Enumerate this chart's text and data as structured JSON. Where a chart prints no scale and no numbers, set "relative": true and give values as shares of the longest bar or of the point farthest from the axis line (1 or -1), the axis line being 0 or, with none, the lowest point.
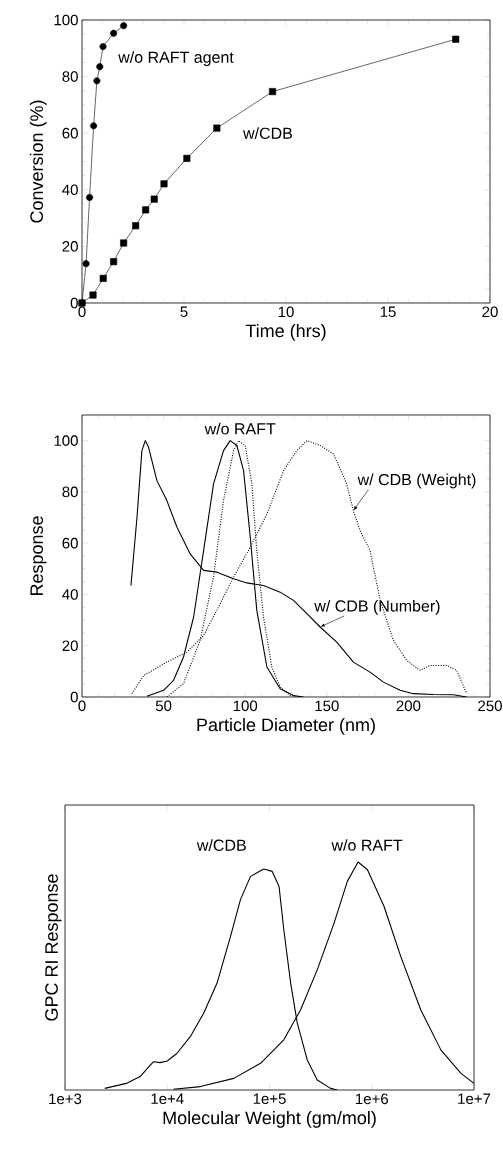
{
  "chart_data": [
    {
      "type": "line",
      "xlabel": "Time (hrs)",
      "ylabel": "Conversion (%)",
      "xlim": [
        0,
        20
      ],
      "ylim": [
        0,
        100
      ],
      "xticks": [
        0,
        5,
        10,
        15,
        20
      ],
      "yticks": [
        0,
        20,
        40,
        60,
        80,
        100
      ],
      "series": [
        {
          "name": "w/o RAFT agent",
          "color": "#000000",
          "marker": "circle",
          "x": [
            0,
            0.2,
            0.37,
            0.57,
            0.73,
            0.87,
            1.03,
            1.55,
            2.04
          ],
          "values": [
            0,
            13.9,
            37.3,
            62.6,
            78.5,
            83.5,
            90.6,
            95.3,
            98
          ]
        },
        {
          "name": "w/CDB",
          "color": "#000000",
          "marker": "square",
          "x": [
            0,
            0.54,
            1.04,
            1.55,
            2.04,
            2.63,
            3.12,
            3.54,
            4.02,
            5.14,
            6.61,
            9.34,
            18.32
          ],
          "values": [
            0,
            2.8,
            8.7,
            14.6,
            21.2,
            27.3,
            32.9,
            36.7,
            42.1,
            51.1,
            61.8,
            74.7,
            93.2
          ]
        }
      ]
    },
    {
      "type": "line",
      "xlabel": "Particle Diameter (nm)",
      "ylabel": "Response",
      "xlim": [
        0,
        250
      ],
      "ylim": [
        0,
        110
      ],
      "xticks": [
        0,
        50,
        100,
        150,
        200,
        250
      ],
      "yticks": [
        0,
        20,
        40,
        60,
        80,
        100
      ],
      "series": [
        {
          "name": "w/o RAFT",
          "color": "#000000",
          "line_style": "solid",
          "x": [
            39.8,
            50,
            56.1,
            62.2,
            68.4,
            74.5,
            80.6,
            86.7,
            90.8,
            94.9,
            99,
            103.1,
            107.1,
            113.3,
            121.4,
            129.6,
            135.7
          ],
          "values": [
            0.3,
            2.6,
            6.5,
            15.6,
            31.2,
            57.1,
            83.1,
            96.1,
            100,
            98.1,
            88.3,
            62.3,
            33.8,
            11.7,
            3.2,
            0.6,
            0
          ]
        },
        {
          "color": "#000000",
          "line_style": "dotted",
          "x": [
            52,
            62.2,
            72.4,
            80.6,
            86.7,
            92.9,
            95.9,
            100,
            104.1,
            107.1,
            111.2,
            116.3,
            121.4,
            127.6,
            133.7
          ],
          "values": [
            0,
            5.2,
            22.1,
            46.8,
            76.6,
            96.1,
            100,
            98.1,
            83.1,
            57.1,
            31.2,
            11.7,
            3.9,
            0.6,
            0
          ]
        },
        {
          "name": "w/ CDB (Weight)",
          "color": "#000000",
          "line_style": "dotted",
          "x": [
            30.6,
            37.8,
            52,
            64.3,
            74.5,
            84.7,
            92.9,
            103.1,
            113.3,
            123.5,
            131.6,
            137.8,
            146,
            154.1,
            162.2,
            166.3,
            170.4,
            176.5,
            182.7,
            190.8,
            199,
            207.1,
            213.3,
            223.5,
            229.6,
            235.7
          ],
          "values": [
            1.3,
            8.4,
            13.6,
            17.5,
            24,
            36.4,
            46.8,
            58.4,
            71.4,
            88.3,
            96.1,
            100,
            98.1,
            94.8,
            83.1,
            72.7,
            64.9,
            57.1,
            37.7,
            22.1,
            14.3,
            10.4,
            12.3,
            12.3,
            10.4,
            1.3
          ]
        },
        {
          "name": "w/ CDB (Number)",
          "color": "#000000",
          "line_style": "solid",
          "x": [
            30,
            33.7,
            36.7,
            38.8,
            40.8,
            45.9,
            52,
            58.2,
            66.3,
            74.5,
            82.7,
            92.9,
            101,
            111.2,
            121.4,
            129.6,
            137.8,
            145.9,
            156.1,
            166.3,
            176.5,
            184.7,
            194.9,
            203,
            215.3,
            227.6,
            235.7
          ],
          "values": [
            43.5,
            70.1,
            96.1,
            100,
            97.4,
            84.4,
            76.6,
            66.2,
            55.8,
            49.4,
            48.7,
            46.1,
            44.5,
            43.5,
            40.9,
            37.7,
            32.5,
            27.3,
            21.4,
            13.6,
            9.7,
            5.8,
            2.6,
            1.3,
            1.0,
            0.9,
            0
          ]
        }
      ]
    },
    {
      "type": "line",
      "relative": true,
      "log": "x",
      "xlabel": "Molecular Weight (gm/mol)",
      "ylabel": "GPC RI Response",
      "xlim": [
        1000,
        10000000
      ],
      "xticks": [
        {
          "value": 1000,
          "label": "1e+3"
        },
        {
          "value": 10000,
          "label": "1e+4"
        },
        {
          "value": 100000,
          "label": "1e+5"
        },
        {
          "value": 1000000,
          "label": "1e+6"
        },
        {
          "value": 10000000,
          "label": "1e+7"
        }
      ],
      "series": [
        {
          "name": "w/CDB",
          "color": "#000000",
          "x": [
            2450,
            3980,
            5430,
            6560,
            7350,
            8510,
            10000,
            12400,
            16800,
            22700,
            30700,
            41500,
            52000,
            65200,
            87900,
            106000,
            124000,
            138000,
            161000,
            187000,
            234000,
            293000,
            396000,
            460000
          ],
          "values": [
            0.007,
            0.029,
            0.059,
            0.1,
            0.124,
            0.12,
            0.127,
            0.16,
            0.234,
            0.337,
            0.469,
            0.673,
            0.835,
            0.937,
            0.969,
            0.959,
            0.893,
            0.703,
            0.469,
            0.293,
            0.132,
            0.044,
            0.007,
            0
          ]
        },
        {
          "name": "w/o RAFT",
          "color": "#000000",
          "x": [
            11500,
            21100,
            44700,
            81700,
            138000,
            201000,
            293000,
            428000,
            577000,
            735000,
            908000,
            1320000,
            1920000,
            3020000,
            4740000,
            7460000,
            10000000
          ],
          "values": [
            0.003,
            0.015,
            0.051,
            0.117,
            0.22,
            0.351,
            0.527,
            0.732,
            0.915,
            1.0,
            0.966,
            0.805,
            0.586,
            0.351,
            0.176,
            0.073,
            0.029
          ]
        }
      ]
    }
  ]
}
